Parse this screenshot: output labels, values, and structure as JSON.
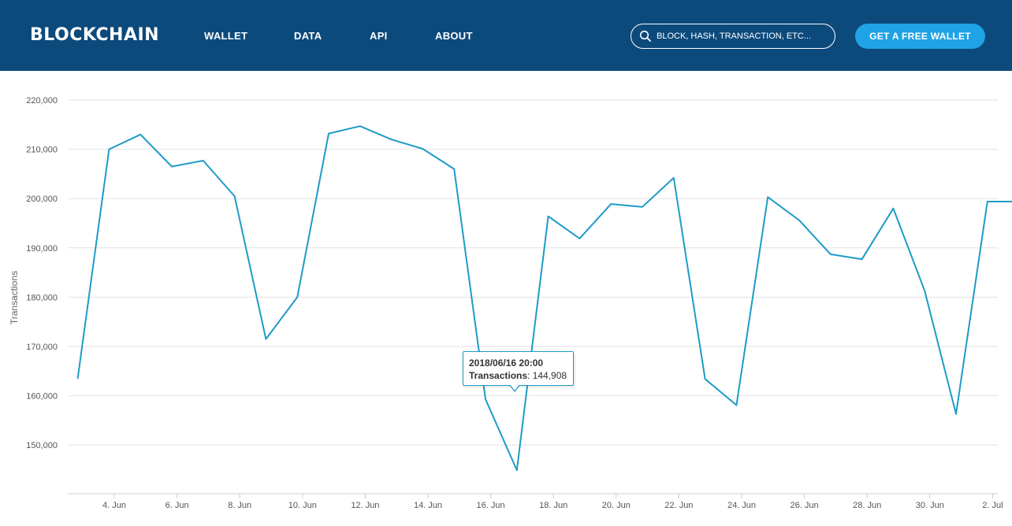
{
  "header": {
    "brand": "BLOCKCHAIN",
    "nav": [
      {
        "label": "WALLET"
      },
      {
        "label": "DATA"
      },
      {
        "label": "API"
      },
      {
        "label": "ABOUT"
      }
    ],
    "search": {
      "placeholder": "BLOCK, HASH, TRANSACTION, ETC..."
    },
    "cta_label": "GET A FREE WALLET",
    "bg_color": "#0d4a7c",
    "cta_color": "#1fa3e6"
  },
  "tooltip": {
    "date": "2018/06/16 20:00",
    "label": "Transactions",
    "value": "144,908"
  },
  "chart_data": {
    "type": "line",
    "ylabel": "Transactions",
    "ylim": [
      140000,
      220000
    ],
    "y_ticks": [
      "150,000",
      "160,000",
      "170,000",
      "180,000",
      "190,000",
      "200,000",
      "210,000",
      "220,000"
    ],
    "x_ticks": [
      "4. Jun",
      "6. Jun",
      "8. Jun",
      "10. Jun",
      "12. Jun",
      "14. Jun",
      "16. Jun",
      "18. Jun",
      "20. Jun",
      "22. Jun",
      "24. Jun",
      "26. Jun",
      "28. Jun",
      "30. Jun",
      "2. Jul"
    ],
    "grid": true,
    "line_color": "#1e9bc7",
    "series": [
      {
        "x": [
          "2018-06-02 20:00",
          "2018-06-03 20:00",
          "2018-06-04 20:00",
          "2018-06-05 20:00",
          "2018-06-06 20:00",
          "2018-06-07 20:00",
          "2018-06-08 20:00",
          "2018-06-09 20:00",
          "2018-06-10 20:00",
          "2018-06-11 20:00",
          "2018-06-12 20:00",
          "2018-06-13 20:00",
          "2018-06-14 20:00",
          "2018-06-15 20:00",
          "2018-06-16 20:00",
          "2018-06-17 20:00",
          "2018-06-18 20:00",
          "2018-06-19 20:00",
          "2018-06-20 20:00",
          "2018-06-21 20:00",
          "2018-06-22 20:00",
          "2018-06-23 20:00",
          "2018-06-24 20:00",
          "2018-06-25 20:00",
          "2018-06-26 20:00",
          "2018-06-27 20:00",
          "2018-06-28 20:00",
          "2018-06-29 20:00",
          "2018-06-30 20:00",
          "2018-07-01 20:00",
          "2018-07-02 20:00"
        ],
        "values": [
          163500,
          210000,
          213000,
          206500,
          207700,
          200500,
          171500,
          180000,
          213200,
          214700,
          212000,
          210100,
          206000,
          159300,
          144908,
          196400,
          191900,
          198900,
          198300,
          204200,
          163400,
          158100,
          200300,
          195600,
          188700,
          187700,
          198000,
          181300,
          156300,
          199400,
          199400
        ]
      }
    ]
  }
}
